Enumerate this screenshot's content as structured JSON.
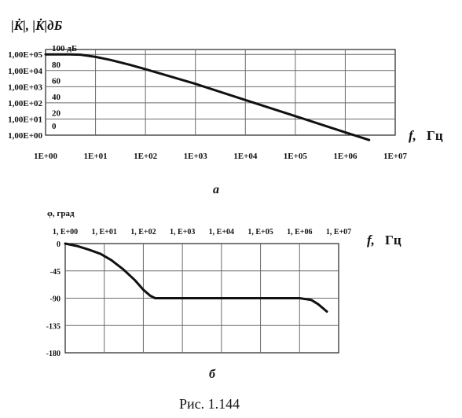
{
  "chart_data": [
    {
      "type": "line",
      "panel_label": "а",
      "ylabel": "|K̇|, |K̇|дБ",
      "xlabel_var": "f,",
      "xlabel_unit": "Гц",
      "x_scale": "log",
      "y_scale": "log",
      "x_ticks": [
        "1E+00",
        "1E+01",
        "1E+02",
        "1E+03",
        "1E+04",
        "1E+05",
        "1E+06",
        "1E+07"
      ],
      "y_ticks": [
        "1,00E+00",
        "1,00E+01",
        "1,00E+02",
        "1,00E+03",
        "1,00E+04",
        "1,00E+05"
      ],
      "y2_ticks": [
        "0",
        "20",
        "40",
        "60",
        "80",
        "100 дБ"
      ],
      "xlim": [
        1,
        10000000
      ],
      "ylim": [
        1,
        200000
      ],
      "grid": true,
      "x": [
        1,
        3,
        5,
        10,
        20,
        50,
        100,
        300,
        1000,
        10000,
        100000,
        1000000,
        3000000
      ],
      "y": [
        100000,
        100000,
        95000,
        70000,
        45000,
        22000,
        12000,
        4500,
        1500,
        150,
        15,
        1.5,
        0.5
      ]
    },
    {
      "type": "line",
      "panel_label": "б",
      "ylabel": "φ, град",
      "xlabel_var": "f,",
      "xlabel_unit": "Гц",
      "x_scale": "log",
      "x_ticks": [
        "1, E+00",
        "1, E+01",
        "1, E+02",
        "1, E+03",
        "1, E+04",
        "1, E+05",
        "1, E+06",
        "1, E+07"
      ],
      "y_ticks": [
        "0",
        "-45",
        "-90",
        "-135",
        "-180"
      ],
      "xlim": [
        1,
        10000000
      ],
      "ylim": [
        -180,
        0
      ],
      "grid": true,
      "x": [
        1,
        2,
        4,
        8,
        15,
        30,
        60,
        100,
        150,
        200,
        300,
        500,
        1000,
        10000,
        100000,
        1000000,
        2000000,
        3000000,
        5000000
      ],
      "y": [
        0,
        -4,
        -10,
        -17,
        -27,
        -42,
        -60,
        -76,
        -86,
        -90,
        -90,
        -90,
        -90,
        -90,
        -90,
        -90,
        -93,
        -100,
        -112
      ]
    }
  ],
  "caption": "Рис. 1.144"
}
